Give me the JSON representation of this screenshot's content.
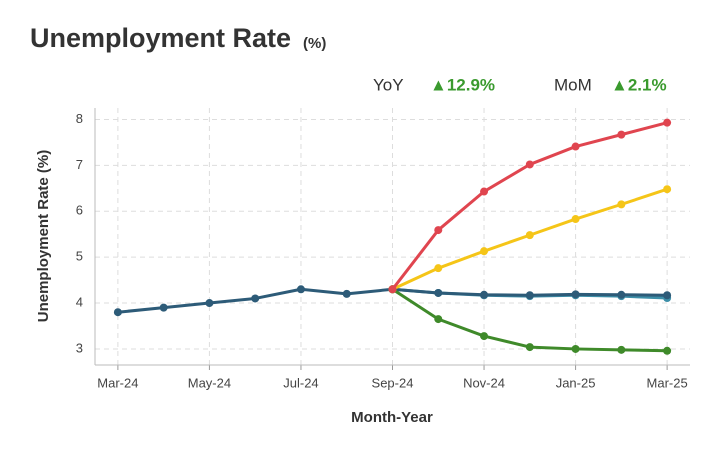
{
  "chart_data": {
    "type": "line",
    "title": "Unemployment Rate",
    "title_unit": "(%)",
    "indicators": [
      {
        "name": "YoY",
        "text": "▲12.9%"
      },
      {
        "name": "MoM",
        "text": "▲2.1%"
      }
    ],
    "x_label": "Month-Year",
    "y_label": "Unemployment Rate (%)",
    "categories": [
      "Mar-24",
      null,
      "May-24",
      null,
      "Jul-24",
      null,
      "Sep-24",
      null,
      "Nov-24",
      null,
      "Jan-25",
      null,
      "Mar-25"
    ],
    "ylim": [
      2.65,
      8.25
    ],
    "yticks": [
      3,
      4,
      5,
      6,
      7,
      8
    ],
    "grid": true,
    "series": [
      {
        "color": "#2d5b78",
        "values": [
          3.8,
          3.9,
          4.0,
          4.1,
          4.3,
          4.2,
          4.3,
          null,
          null,
          null,
          null,
          null,
          null
        ]
      },
      {
        "color": "#3d8fa8",
        "values": [
          null,
          null,
          null,
          null,
          null,
          null,
          4.3,
          4.22,
          4.17,
          4.15,
          4.17,
          4.15,
          4.11
        ]
      },
      {
        "color": "#2d5b78",
        "values": [
          null,
          null,
          null,
          null,
          null,
          null,
          4.3,
          4.22,
          4.18,
          4.17,
          4.19,
          4.18,
          4.17
        ]
      },
      {
        "color": "#3f8a2a",
        "values": [
          null,
          null,
          null,
          null,
          null,
          null,
          4.3,
          3.65,
          3.28,
          3.04,
          3.0,
          2.98,
          2.96
        ]
      },
      {
        "color": "#f5c518",
        "values": [
          null,
          null,
          null,
          null,
          null,
          null,
          4.3,
          4.76,
          5.13,
          5.48,
          5.83,
          6.15,
          6.48
        ]
      },
      {
        "color": "#e0454f",
        "values": [
          null,
          null,
          null,
          null,
          null,
          null,
          4.3,
          5.59,
          6.43,
          7.02,
          7.41,
          7.67,
          7.93
        ]
      }
    ]
  }
}
